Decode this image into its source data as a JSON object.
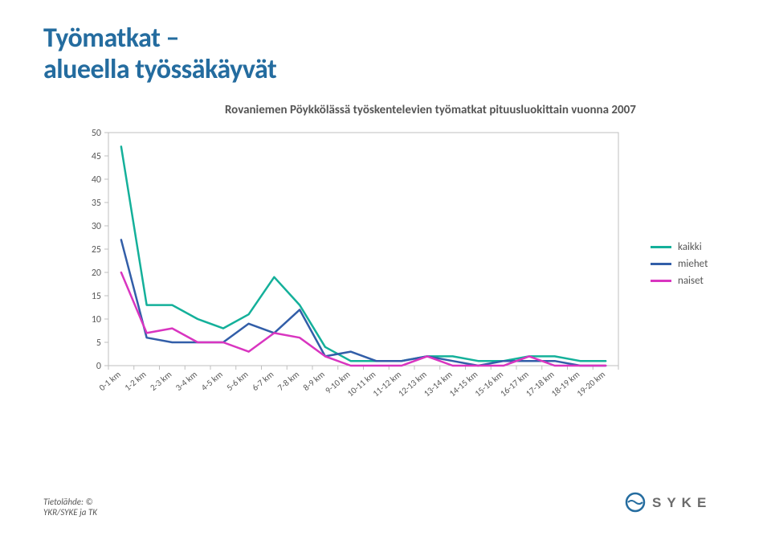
{
  "title_line1": "Työmatkat –",
  "title_line2": "alueella työssäkäyvät",
  "chart": {
    "subtitle": "Rovaniemen Pöykkölässä työskentelevien työmatkat pituusluokittain vuonna 2007",
    "categories": [
      "0-1 km",
      "1-2 km",
      "2-3 km",
      "3-4 km",
      "4-5 km",
      "5-6 km",
      "6-7 km",
      "7-8 km",
      "8-9 km",
      "9-10 km",
      "10-11 km",
      "11-12 km",
      "12-13 km",
      "13-14 km",
      "14-15 km",
      "15-16 km",
      "16-17 km",
      "17-18 km",
      "18-19 km",
      "19-20 km"
    ],
    "categories_rotate_deg": -40,
    "ylim": [
      0,
      50
    ],
    "ytick_step": 5,
    "series": [
      {
        "name": "kaikki",
        "color": "#14b09a",
        "width": 2.5,
        "data": [
          47,
          13,
          13,
          10,
          8,
          11,
          19,
          13,
          4,
          1,
          1,
          1,
          2,
          2,
          1,
          1,
          2,
          2,
          1,
          1
        ]
      },
      {
        "name": "miehet",
        "color": "#325ea8",
        "width": 2.5,
        "data": [
          27,
          6,
          5,
          5,
          5,
          9,
          7,
          12,
          2,
          3,
          1,
          1,
          2,
          1,
          0,
          1,
          1,
          1,
          0,
          0
        ]
      },
      {
        "name": "naiset",
        "color": "#d935c0",
        "width": 2.5,
        "data": [
          20,
          7,
          8,
          5,
          5,
          3,
          7,
          6,
          2,
          0,
          0,
          0,
          2,
          0,
          0,
          0,
          2,
          0,
          0,
          0
        ]
      }
    ],
    "border_color": "#bfbfbf",
    "background": "#ffffff",
    "axis_text_color": "#595959"
  },
  "legend_labels": {
    "kaikki": "kaikki",
    "miehet": "miehet",
    "naiset": "naiset"
  },
  "footer": {
    "line1": "Tietolähde: ©",
    "line2": "YKR/SYKE ja TK"
  },
  "logo_text": "SYKE"
}
